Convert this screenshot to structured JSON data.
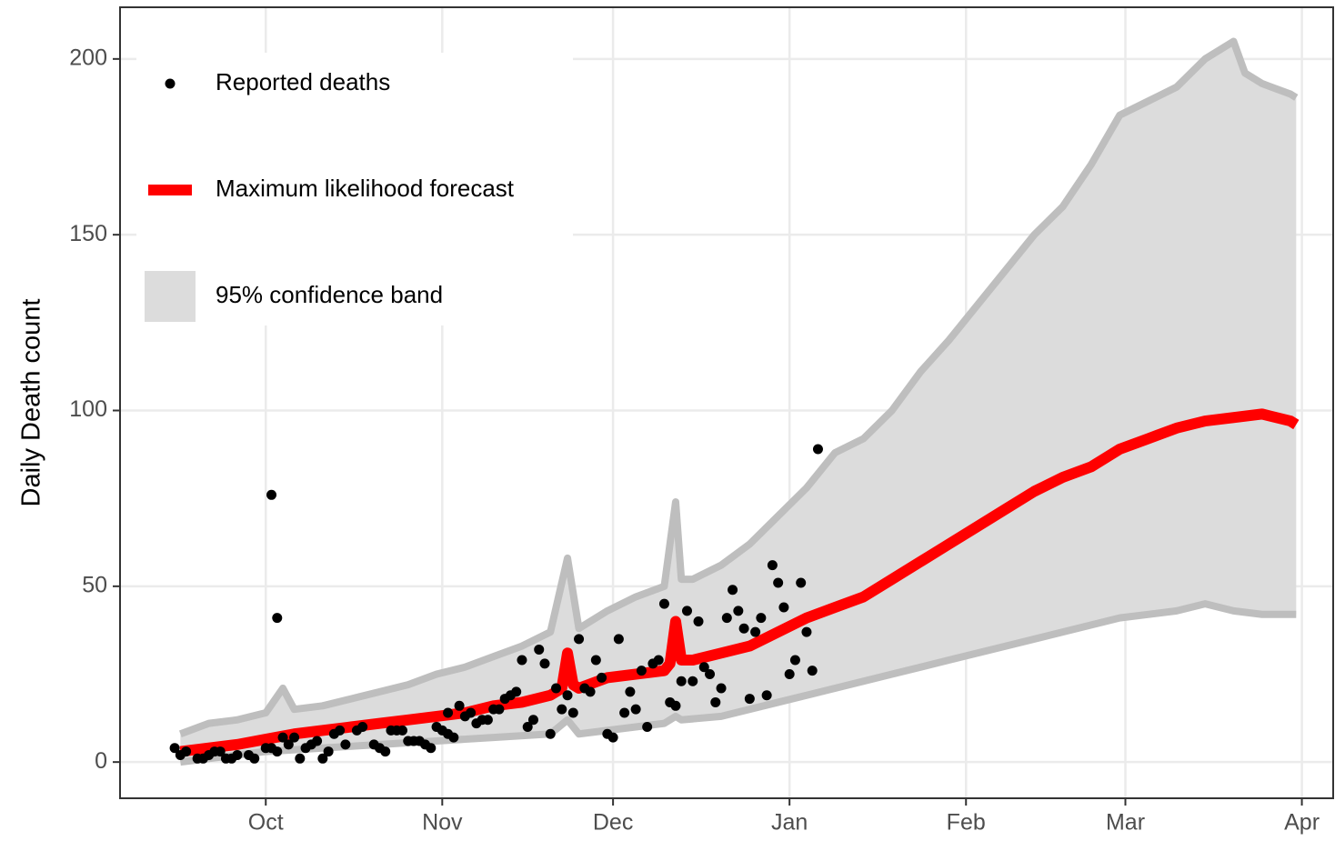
{
  "chart_data": {
    "type": "line",
    "ylabel": "Daily Death count",
    "xlim": [
      -25.6,
      187.5
    ],
    "ylim": [
      -10.3,
      214.7
    ],
    "xticks": [
      {
        "value": 0,
        "label": "Oct"
      },
      {
        "value": 31,
        "label": "Nov"
      },
      {
        "value": 61,
        "label": "Dec"
      },
      {
        "value": 92,
        "label": "Jan"
      },
      {
        "value": 123,
        "label": "Feb"
      },
      {
        "value": 151,
        "label": "Mar"
      },
      {
        "value": 182,
        "label": "Apr"
      }
    ],
    "yticks": [
      0,
      50,
      100,
      150,
      200
    ],
    "grid": true,
    "legend": "top-left",
    "series": [
      {
        "name": "Reported deaths",
        "kind": "points",
        "color": "#000000",
        "x": [
          -16,
          -15,
          -14,
          -12,
          -11,
          -10,
          -9,
          -8,
          -7,
          -6,
          -5,
          -3,
          -2,
          0,
          1,
          1,
          2,
          2,
          3,
          4,
          5,
          6,
          7,
          8,
          9,
          10,
          11,
          12,
          13,
          14,
          16,
          17,
          19,
          20,
          21,
          22,
          23,
          24,
          25,
          26,
          27,
          28,
          29,
          30,
          31,
          32,
          32,
          33,
          34,
          35,
          36,
          37,
          38,
          39,
          40,
          41,
          42,
          43,
          44,
          45,
          46,
          47,
          48,
          49,
          50,
          51,
          52,
          53,
          54,
          55,
          56,
          57,
          58,
          59,
          60,
          61,
          62,
          63,
          64,
          65,
          66,
          67,
          68,
          69,
          70,
          71,
          72,
          73,
          74,
          75,
          76,
          77,
          78,
          79,
          80,
          81,
          82,
          83,
          84,
          85,
          86,
          87,
          88,
          89,
          90,
          91,
          92,
          93,
          94,
          95,
          96,
          97
        ],
        "values": [
          4,
          2,
          3,
          1,
          1,
          2,
          3,
          3,
          1,
          1,
          2,
          2,
          1,
          4,
          76,
          4,
          41,
          3,
          7,
          5,
          7,
          1,
          4,
          5,
          6,
          1,
          3,
          8,
          9,
          5,
          9,
          10,
          5,
          4,
          3,
          9,
          9,
          9,
          6,
          6,
          6,
          5,
          4,
          10,
          9,
          8,
          14,
          7,
          16,
          13,
          14,
          11,
          12,
          12,
          15,
          15,
          18,
          19,
          20,
          29,
          10,
          12,
          32,
          28,
          8,
          21,
          15,
          19,
          14,
          35,
          21,
          20,
          29,
          24,
          8,
          7,
          35,
          14,
          20,
          15,
          26,
          10,
          28,
          29,
          45,
          17,
          16,
          23,
          43,
          23,
          40,
          27,
          25,
          17,
          21,
          41,
          49,
          43,
          38,
          18,
          37,
          41,
          19,
          56,
          51,
          44,
          25,
          29,
          51,
          37,
          26,
          89
        ]
      },
      {
        "name": "Maximum likelihood forecast",
        "kind": "line",
        "color": "#ff0000",
        "x": [
          -15,
          -10,
          -5,
          0,
          5,
          10,
          15,
          20,
          25,
          30,
          35,
          40,
          45,
          50,
          52,
          53,
          54,
          55,
          60,
          65,
          70,
          71,
          72,
          73,
          75,
          80,
          85,
          90,
          95,
          100,
          105,
          110,
          115,
          120,
          125,
          130,
          135,
          140,
          145,
          150,
          155,
          160,
          165,
          170,
          175,
          180,
          181
        ],
        "values": [
          3,
          4,
          5,
          6.5,
          8,
          9,
          10,
          11,
          12,
          13,
          14,
          16,
          17,
          19,
          21,
          31,
          22,
          21,
          24,
          25,
          26,
          28,
          40,
          29,
          29,
          31,
          33,
          37,
          41,
          44,
          47,
          52,
          57,
          62,
          67,
          72,
          77,
          81,
          84,
          89,
          92,
          95,
          97,
          98,
          99,
          97,
          96
        ]
      },
      {
        "name": "95% confidence band",
        "kind": "band",
        "color": "#dcdcdc",
        "edge_color": "#bebebe",
        "upper": {
          "x": [
            -15,
            -10,
            -5,
            0,
            3,
            5,
            10,
            15,
            20,
            25,
            30,
            35,
            40,
            45,
            50,
            53,
            55,
            60,
            65,
            70,
            72,
            73,
            75,
            80,
            85,
            90,
            95,
            100,
            105,
            110,
            115,
            120,
            125,
            130,
            135,
            140,
            145,
            150,
            155,
            160,
            165,
            170,
            172,
            175,
            180,
            181
          ],
          "values": [
            8,
            11,
            12,
            14,
            21,
            15,
            16,
            18,
            20,
            22,
            25,
            27,
            30,
            33,
            37,
            58,
            38,
            43,
            47,
            50,
            74,
            52,
            52,
            56,
            62,
            70,
            78,
            88,
            92,
            100,
            111,
            120,
            130,
            140,
            150,
            158,
            170,
            184,
            188,
            192,
            200,
            205,
            196,
            193,
            190,
            189
          ]
        },
        "lower": {
          "x": [
            -15,
            -5,
            0,
            10,
            20,
            30,
            40,
            50,
            53,
            55,
            60,
            70,
            72,
            73,
            80,
            90,
            100,
            110,
            120,
            130,
            140,
            150,
            160,
            165,
            170,
            175,
            181
          ],
          "values": [
            0,
            2,
            3,
            4,
            5,
            6,
            7,
            8,
            12,
            8,
            9,
            11,
            13,
            12,
            13,
            17,
            21,
            25,
            29,
            33,
            37,
            41,
            43,
            45,
            43,
            42,
            42
          ]
        }
      }
    ]
  }
}
